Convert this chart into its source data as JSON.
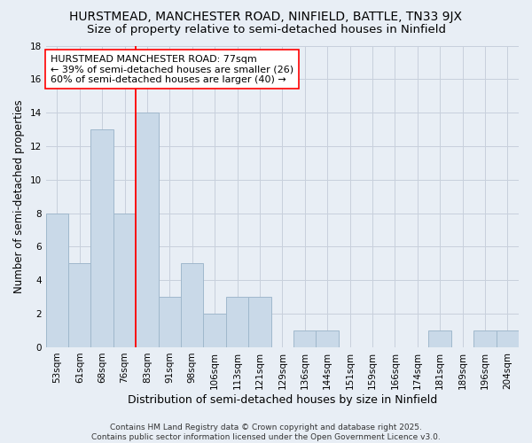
{
  "title": "HURSTMEAD, MANCHESTER ROAD, NINFIELD, BATTLE, TN33 9JX",
  "subtitle": "Size of property relative to semi-detached houses in Ninfield",
  "xlabel": "Distribution of semi-detached houses by size in Ninfield",
  "ylabel": "Number of semi-detached properties",
  "categories": [
    "53sqm",
    "61sqm",
    "68sqm",
    "76sqm",
    "83sqm",
    "91sqm",
    "98sqm",
    "106sqm",
    "113sqm",
    "121sqm",
    "129sqm",
    "136sqm",
    "144sqm",
    "151sqm",
    "159sqm",
    "166sqm",
    "174sqm",
    "181sqm",
    "189sqm",
    "196sqm",
    "204sqm"
  ],
  "values": [
    8,
    5,
    13,
    8,
    14,
    3,
    5,
    2,
    3,
    3,
    0,
    1,
    1,
    0,
    0,
    0,
    0,
    1,
    0,
    1,
    1
  ],
  "bar_color": "#c9d9e8",
  "bar_edgecolor": "#a0b8cc",
  "grid_color": "#c8d0dc",
  "background_color": "#e8eef5",
  "vline_x": 3.5,
  "vline_color": "red",
  "annotation_text": "HURSTMEAD MANCHESTER ROAD: 77sqm\n← 39% of semi-detached houses are smaller (26)\n60% of semi-detached houses are larger (40) →",
  "annotation_box_color": "white",
  "annotation_box_edgecolor": "red",
  "ylim": [
    0,
    18
  ],
  "yticks": [
    0,
    2,
    4,
    6,
    8,
    10,
    12,
    14,
    16,
    18
  ],
  "footer": "Contains HM Land Registry data © Crown copyright and database right 2025.\nContains public sector information licensed under the Open Government Licence v3.0.",
  "title_fontsize": 10,
  "subtitle_fontsize": 9.5,
  "xlabel_fontsize": 9,
  "ylabel_fontsize": 8.5,
  "tick_fontsize": 7.5,
  "footer_fontsize": 6.5,
  "annot_fontsize": 8
}
